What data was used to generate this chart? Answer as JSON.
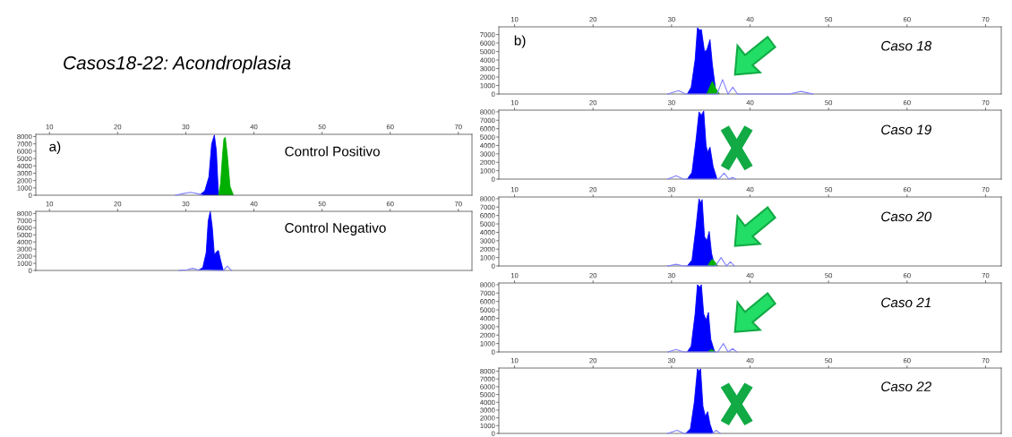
{
  "chart_data": [
    {
      "type": "area",
      "title": "Casos18-22: Acondroplasia",
      "annotations": [
        "a)",
        "Control Positivo"
      ],
      "xlim": [
        8,
        72
      ],
      "xticks": [
        10,
        20,
        30,
        40,
        50,
        60,
        70
      ],
      "ylim": [
        0,
        8300
      ],
      "yticks": [
        0,
        1000,
        2000,
        3000,
        4000,
        5000,
        6000,
        7000,
        8000
      ],
      "grid": false,
      "series": [
        {
          "type": "line",
          "color": "#8080ff",
          "x": [
            28.5,
            29.5,
            30.7,
            31.8,
            32.5
          ],
          "values": [
            0,
            200,
            400,
            200,
            0
          ]
        },
        {
          "color": "#0000ff",
          "x": [
            32,
            32.8,
            33.4,
            33.8,
            34.2,
            34.5,
            34.8
          ],
          "values": [
            0,
            600,
            2500,
            7000,
            8200,
            6000,
            0
          ]
        },
        {
          "color": "#00b000",
          "x": [
            34.8,
            35.1,
            35.4,
            35.6,
            35.8,
            36.1,
            36.5,
            37
          ],
          "values": [
            0,
            1500,
            5500,
            7700,
            7900,
            5500,
            1200,
            0
          ]
        }
      ]
    },
    {
      "type": "area",
      "annotations": [
        "Control Negativo"
      ],
      "xlim": [
        8,
        72
      ],
      "xticks": [
        10,
        20,
        30,
        40,
        50,
        60,
        70
      ],
      "ylim": [
        0,
        8300
      ],
      "yticks": [
        0,
        1000,
        2000,
        3000,
        4000,
        5000,
        6000,
        7000,
        8000
      ],
      "grid": false,
      "series": [
        {
          "type": "line",
          "color": "#8080ff",
          "x": [
            29,
            30.2,
            31,
            31.8,
            35.5,
            36.1,
            36.7
          ],
          "values": [
            0,
            100,
            300,
            100,
            0,
            600,
            0
          ]
        },
        {
          "color": "#0000ff",
          "x": [
            31.8,
            32.5,
            33,
            33.3,
            33.6,
            33.9,
            34.2,
            34.5,
            34.8,
            35.1,
            35.5
          ],
          "values": [
            0,
            400,
            2500,
            7000,
            8300,
            6000,
            2200,
            2600,
            2800,
            1500,
            0
          ]
        }
      ]
    },
    {
      "type": "area",
      "annotations": [
        "b)",
        "Caso 18"
      ],
      "xlim": [
        8,
        72
      ],
      "xticks": [
        10,
        20,
        30,
        40,
        50,
        60,
        70
      ],
      "ylim": [
        0,
        7900
      ],
      "yticks": [
        0,
        1000,
        2000,
        3000,
        4000,
        5000,
        6000,
        7000
      ],
      "grid": false,
      "series": [
        {
          "type": "line",
          "color": "#8080ff",
          "x": [
            29.5,
            30.9,
            31.8,
            35.8,
            36.5,
            37.2,
            37.8,
            38.4,
            45,
            46.5,
            48
          ],
          "values": [
            0,
            400,
            0,
            0,
            1700,
            0,
            800,
            0,
            0,
            300,
            0
          ]
        },
        {
          "color": "#0000ff",
          "x": [
            32,
            32.5,
            33,
            33.3,
            33.6,
            33.8,
            34.2,
            34.5,
            34.9,
            35.2,
            35.6,
            36
          ],
          "values": [
            0,
            800,
            4000,
            7800,
            7500,
            7600,
            5000,
            5200,
            6400,
            3500,
            600,
            0
          ]
        },
        {
          "color": "#00b000",
          "x": [
            34.5,
            34.9,
            35.2,
            35.6,
            36.1
          ],
          "values": [
            0,
            900,
            1500,
            700,
            0
          ]
        }
      ]
    },
    {
      "type": "area",
      "annotations": [
        "Caso 19"
      ],
      "xlim": [
        8,
        72
      ],
      "xticks": [
        10,
        20,
        30,
        40,
        50,
        60,
        70
      ],
      "ylim": [
        0,
        8200
      ],
      "yticks": [
        0,
        1000,
        2000,
        3000,
        4000,
        5000,
        6000,
        7000,
        8000
      ],
      "grid": false,
      "series": [
        {
          "type": "line",
          "color": "#8080ff",
          "x": [
            29.5,
            30.6,
            31.5,
            36,
            36.7,
            37.3,
            37.8,
            38.2
          ],
          "values": [
            0,
            400,
            0,
            0,
            700,
            0,
            200,
            0
          ]
        },
        {
          "color": "#0000ff",
          "x": [
            32,
            32.6,
            33.1,
            33.5,
            33.8,
            34.1,
            34.4,
            34.6,
            34.9,
            35.3,
            35.8
          ],
          "values": [
            0,
            800,
            4500,
            8000,
            7600,
            8100,
            4000,
            3200,
            3800,
            1500,
            0
          ]
        }
      ]
    },
    {
      "type": "area",
      "annotations": [
        "Caso 20"
      ],
      "xlim": [
        8,
        72
      ],
      "xticks": [
        10,
        20,
        30,
        40,
        50,
        60,
        70
      ],
      "ylim": [
        0,
        8200
      ],
      "yticks": [
        0,
        1000,
        2000,
        3000,
        4000,
        5000,
        6000,
        7000,
        8000
      ],
      "grid": false,
      "series": [
        {
          "type": "line",
          "color": "#8080ff",
          "x": [
            29.5,
            30.6,
            31.5,
            35.6,
            36.3,
            37,
            37.5,
            38
          ],
          "values": [
            0,
            200,
            0,
            0,
            1000,
            0,
            500,
            0
          ]
        },
        {
          "color": "#0000ff",
          "x": [
            32,
            32.6,
            33.1,
            33.5,
            33.7,
            33.9,
            34.2,
            34.5,
            34.8,
            35.1,
            35.5
          ],
          "values": [
            0,
            700,
            4500,
            8000,
            7500,
            7900,
            3500,
            3000,
            4100,
            1500,
            0
          ]
        },
        {
          "color": "#00b000",
          "x": [
            34.6,
            35,
            35.2,
            35.5,
            35.9
          ],
          "values": [
            0,
            600,
            800,
            500,
            0
          ]
        }
      ]
    },
    {
      "type": "area",
      "annotations": [
        "Caso 21"
      ],
      "xlim": [
        8,
        72
      ],
      "xticks": [
        10,
        20,
        30,
        40,
        50,
        60,
        70
      ],
      "ylim": [
        0,
        8200
      ],
      "yticks": [
        0,
        1000,
        2000,
        3000,
        4000,
        5000,
        6000,
        7000,
        8000
      ],
      "grid": false,
      "series": [
        {
          "type": "line",
          "color": "#8080ff",
          "x": [
            29.5,
            30.6,
            31.5,
            35.9,
            36.6,
            37.2,
            37.8,
            38.3
          ],
          "values": [
            0,
            300,
            0,
            0,
            1000,
            0,
            400,
            0
          ]
        },
        {
          "color": "#0000ff",
          "x": [
            32,
            32.5,
            33,
            33.3,
            33.6,
            33.8,
            34.1,
            34.4,
            34.7,
            35,
            35.5
          ],
          "values": [
            0,
            700,
            4500,
            8000,
            7700,
            8000,
            4500,
            3800,
            4700,
            1500,
            0
          ]
        },
        {
          "color": "#00b000",
          "x": [
            34.6,
            35.1,
            35.6
          ],
          "values": [
            0,
            300,
            0
          ]
        }
      ]
    },
    {
      "type": "area",
      "annotations": [
        "Caso 22"
      ],
      "xlim": [
        8,
        72
      ],
      "xticks": [
        10,
        20,
        30,
        40,
        50,
        60,
        70
      ],
      "ylim": [
        0,
        8400
      ],
      "yticks": [
        0,
        1000,
        2000,
        3000,
        4000,
        5000,
        6000,
        7000,
        8000
      ],
      "grid": false,
      "series": [
        {
          "type": "line",
          "color": "#8080ff",
          "x": [
            29.5,
            30.7,
            31.6,
            35.2,
            35.7,
            36.2
          ],
          "values": [
            0,
            400,
            0,
            0,
            400,
            0
          ]
        },
        {
          "color": "#0000ff",
          "x": [
            31.8,
            32.4,
            32.9,
            33.3,
            33.5,
            33.7,
            34,
            34.3,
            34.6,
            34.9,
            35.3
          ],
          "values": [
            0,
            600,
            4000,
            8300,
            8000,
            8300,
            3500,
            2200,
            2800,
            1200,
            0
          ]
        }
      ]
    }
  ]
}
